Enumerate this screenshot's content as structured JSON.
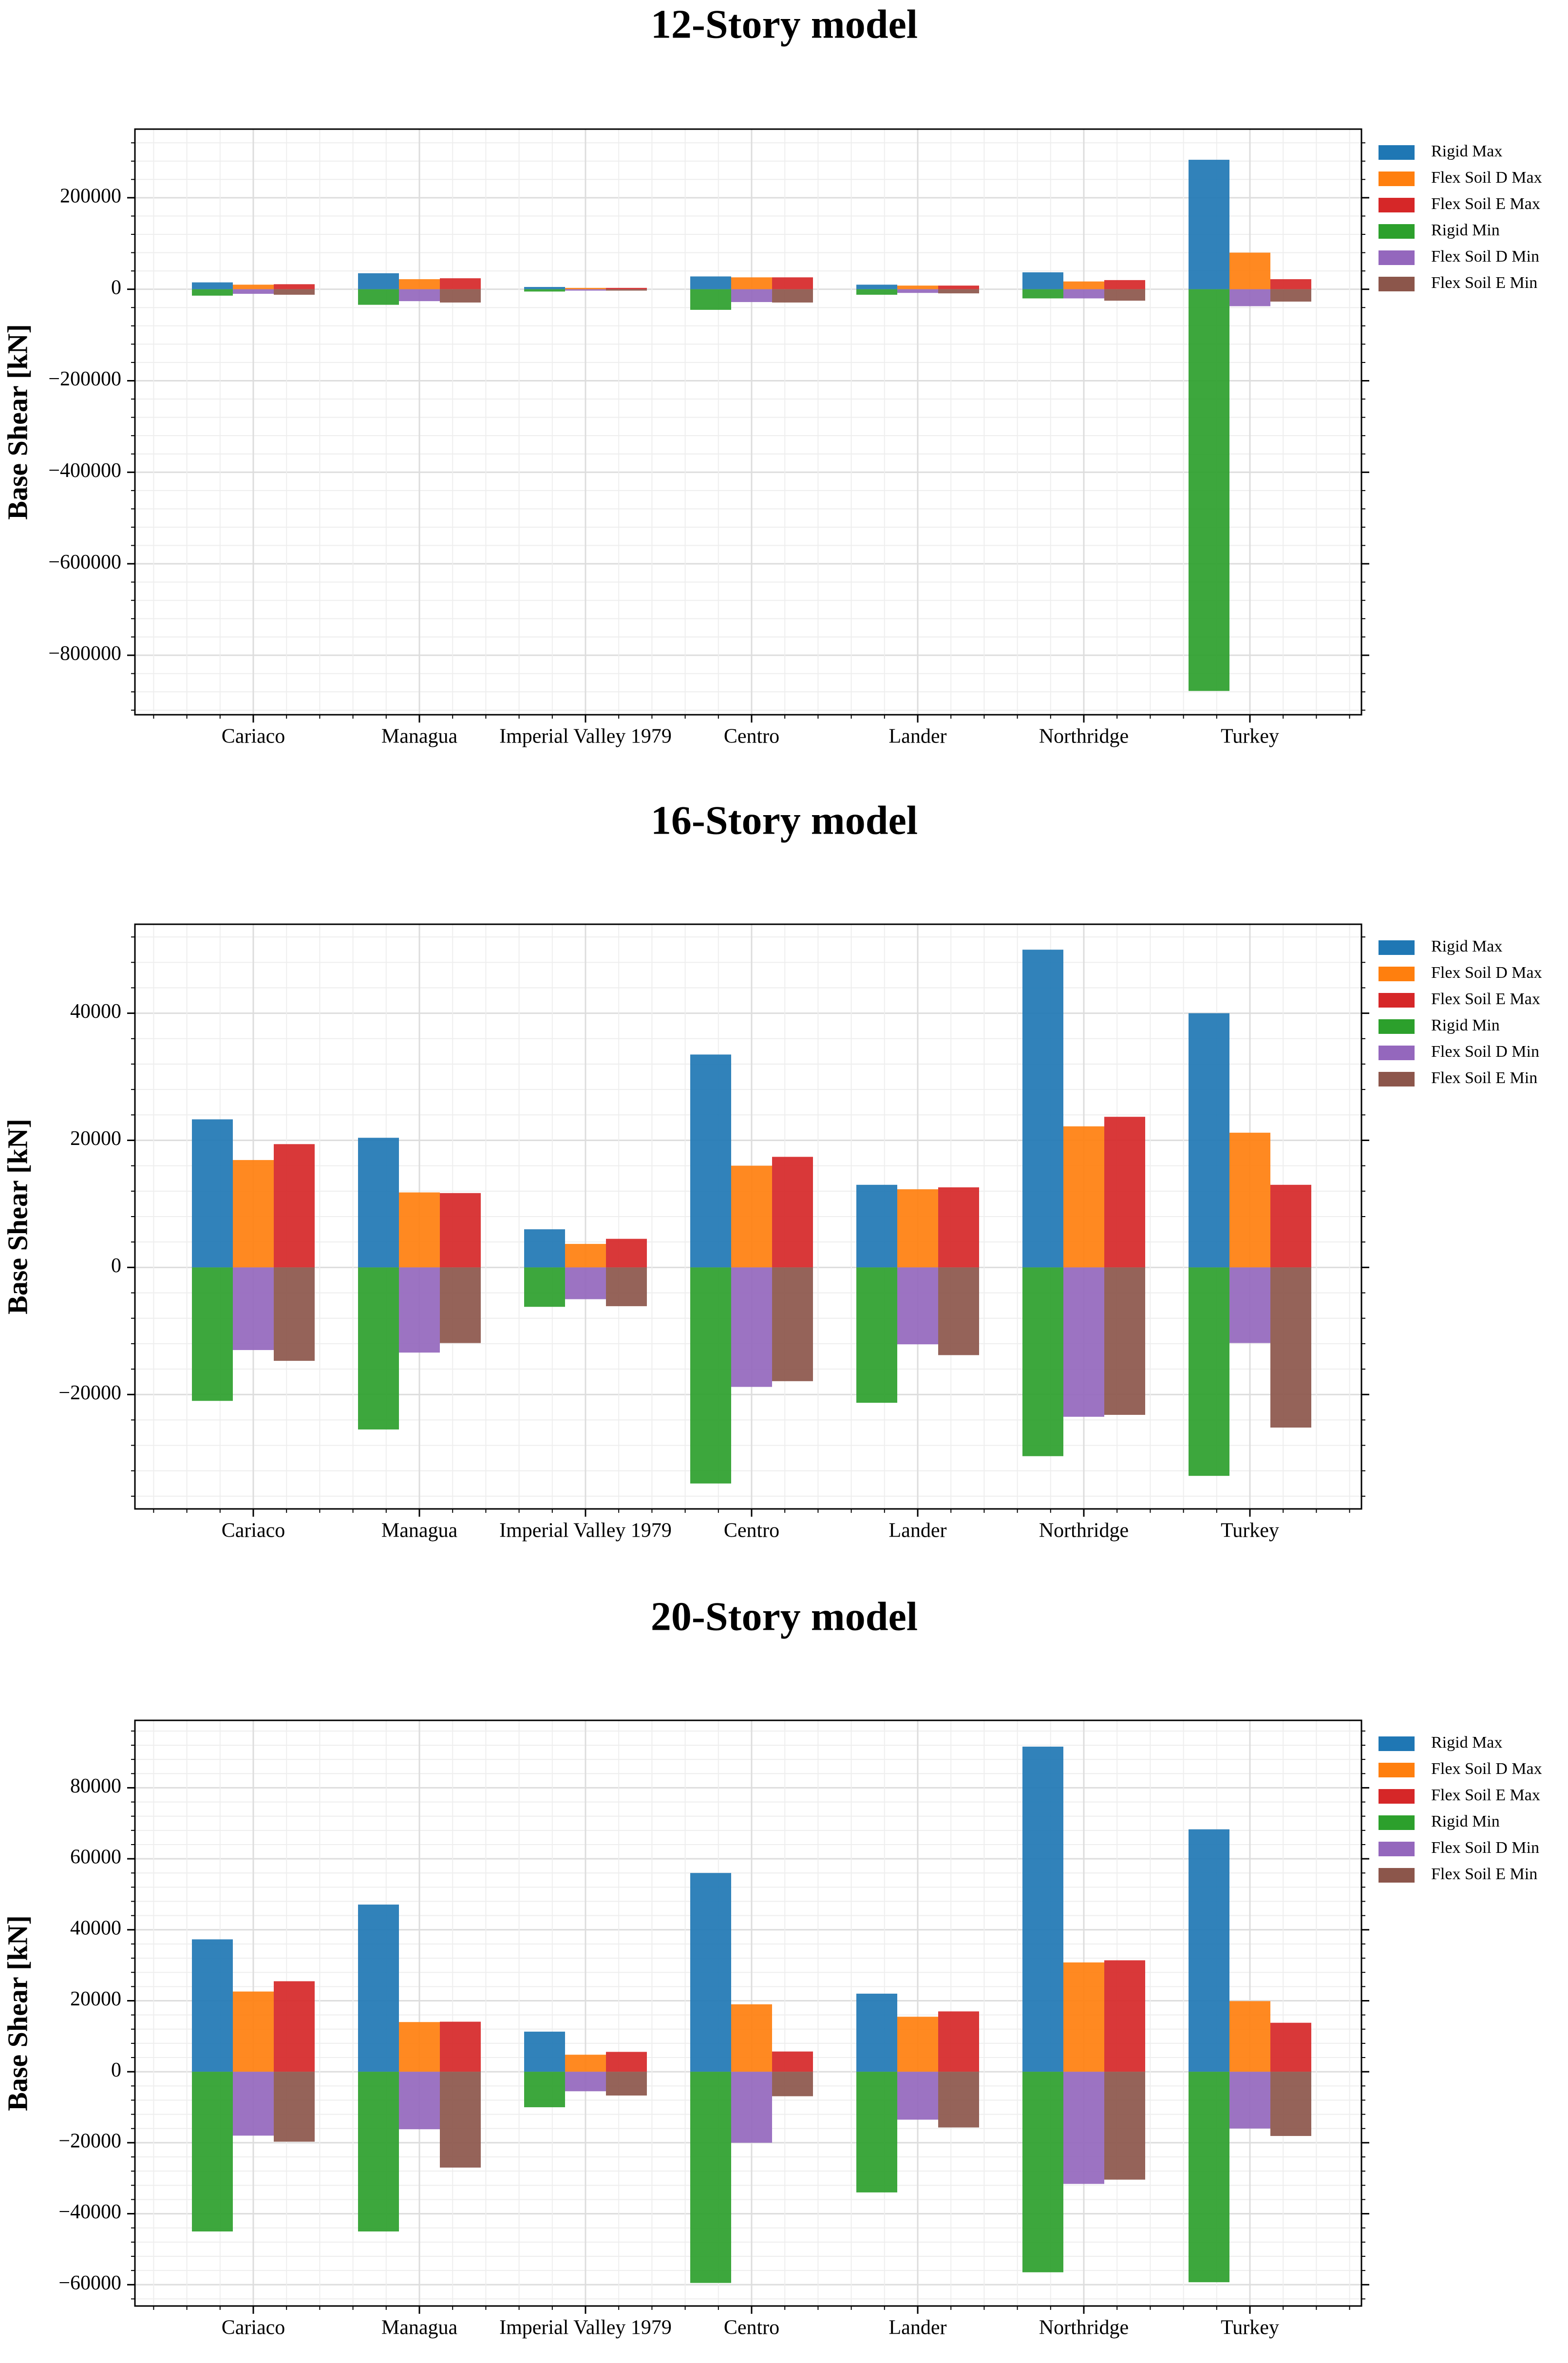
{
  "colors": {
    "Rigid Max": "#1f77b4",
    "Flex Soil D Max": "#ff7f0e",
    "Flex Soil E Max": "#d62728",
    "Rigid Min": "#2ca02c",
    "Flex Soil D Min": "#9467bd",
    "Flex Soil E Min": "#8c564b"
  },
  "chart_data": [
    {
      "type": "bar",
      "title": "12-Story model",
      "ylabel": "Base Shear [kN]",
      "xlabel": "",
      "ylim": [
        -930000,
        350000
      ],
      "yticks": [
        200000,
        0,
        -200000,
        -400000,
        -600000,
        -800000
      ],
      "ytick_labels": [
        "200000",
        "0",
        "−200000",
        "−400000",
        "−600000",
        "−800000"
      ],
      "legend_position": "outside-right",
      "grid": true,
      "categories": [
        "Cariaco",
        "Managua",
        "Imperial Valley 1979",
        "Centro",
        "Lander",
        "Northridge",
        "Turkey"
      ],
      "series": [
        {
          "name": "Rigid Max",
          "values": [
            15000,
            35000,
            5000,
            28000,
            10000,
            37000,
            283000
          ]
        },
        {
          "name": "Flex Soil D Max",
          "values": [
            10000,
            22000,
            3000,
            26000,
            8000,
            17000,
            80000
          ]
        },
        {
          "name": "Flex Soil E Max",
          "values": [
            11000,
            24000,
            3000,
            26000,
            8000,
            20000,
            22000
          ]
        },
        {
          "name": "Rigid Min",
          "values": [
            -14000,
            -34000,
            -5000,
            -45000,
            -12000,
            -20000,
            -878000
          ]
        },
        {
          "name": "Flex Soil D Min",
          "values": [
            -10000,
            -26000,
            -3000,
            -28000,
            -8000,
            -20000,
            -37000
          ]
        },
        {
          "name": "Flex Soil E Min",
          "values": [
            -12000,
            -29000,
            -3000,
            -29000,
            -9000,
            -25000,
            -27000
          ]
        }
      ]
    },
    {
      "type": "bar",
      "title": "16-Story model",
      "ylabel": "Base Shear [kN]",
      "xlabel": "",
      "ylim": [
        -38000,
        54000
      ],
      "yticks": [
        40000,
        20000,
        0,
        -20000
      ],
      "ytick_labels": [
        "40000",
        "20000",
        "0",
        "−20000"
      ],
      "legend_position": "outside-right",
      "grid": true,
      "categories": [
        "Cariaco",
        "Managua",
        "Imperial Valley 1979",
        "Centro",
        "Lander",
        "Northridge",
        "Turkey"
      ],
      "series": [
        {
          "name": "Rigid Max",
          "values": [
            23300,
            20400,
            6000,
            33500,
            13000,
            50000,
            40000
          ]
        },
        {
          "name": "Flex Soil D Max",
          "values": [
            16900,
            11800,
            3700,
            16000,
            12300,
            22200,
            21200
          ]
        },
        {
          "name": "Flex Soil E Max",
          "values": [
            19400,
            11700,
            4500,
            17400,
            12600,
            23700,
            13000
          ]
        },
        {
          "name": "Rigid Min",
          "values": [
            -21000,
            -25500,
            -6200,
            -34000,
            -21300,
            -29700,
            -32800
          ]
        },
        {
          "name": "Flex Soil D Min",
          "values": [
            -13000,
            -13400,
            -5000,
            -18800,
            -12100,
            -23500,
            -11900
          ]
        },
        {
          "name": "Flex Soil E Min",
          "values": [
            -14700,
            -11900,
            -6100,
            -17900,
            -13800,
            -23200,
            -25200
          ]
        }
      ]
    },
    {
      "type": "bar",
      "title": "20-Story model",
      "ylabel": "Base Shear [kN]",
      "xlabel": "",
      "ylim": [
        -66000,
        99000
      ],
      "yticks": [
        80000,
        60000,
        40000,
        20000,
        0,
        -20000,
        -40000,
        -60000
      ],
      "ytick_labels": [
        "80000",
        "60000",
        "40000",
        "20000",
        "0",
        "−20000",
        "−40000",
        "−60000"
      ],
      "legend_position": "outside-right",
      "grid": true,
      "categories": [
        "Cariaco",
        "Managua",
        "Imperial Valley 1979",
        "Centro",
        "Lander",
        "Northridge",
        "Turkey"
      ],
      "series": [
        {
          "name": "Rigid Max",
          "values": [
            37300,
            47100,
            11300,
            56000,
            22000,
            91600,
            68300
          ]
        },
        {
          "name": "Flex Soil D Max",
          "values": [
            22600,
            14000,
            4800,
            19000,
            15500,
            30800,
            19900
          ]
        },
        {
          "name": "Flex Soil E Max",
          "values": [
            25500,
            14100,
            5600,
            5700,
            17000,
            31400,
            13800
          ]
        },
        {
          "name": "Rigid Min",
          "values": [
            -45000,
            -45000,
            -10000,
            -59500,
            -34000,
            -56500,
            -59300
          ]
        },
        {
          "name": "Flex Soil D Min",
          "values": [
            -18000,
            -16200,
            -5500,
            -20000,
            -13500,
            -31600,
            -16000
          ]
        },
        {
          "name": "Flex Soil E Min",
          "values": [
            -19700,
            -27000,
            -6700,
            -6900,
            -15700,
            -30400,
            -18100
          ]
        }
      ]
    }
  ]
}
